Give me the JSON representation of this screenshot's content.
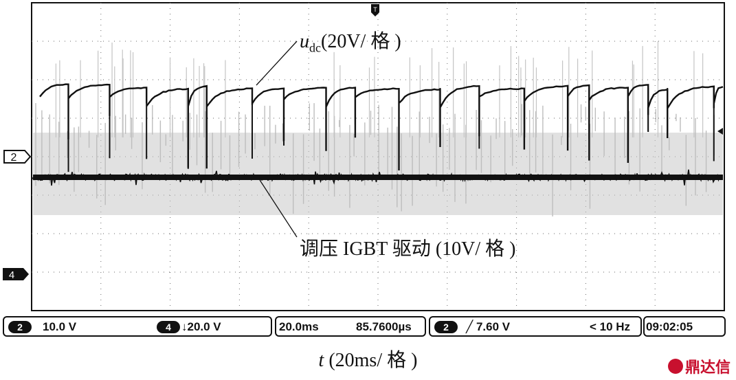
{
  "chart_data": {
    "type": "line",
    "title": "",
    "xlabel_var": "t",
    "xlabel_rest": "(20ms/ 格 )",
    "ylabel": "",
    "grid": true,
    "x_divisions": 10,
    "y_divisions": 8,
    "x_units": "ms",
    "x_range": [
      0,
      200
    ],
    "series": [
      {
        "name_var": "u",
        "name_sub": "dc",
        "name_rest": "(20V/ 格 )",
        "trace": "udc",
        "color": "#111111",
        "baseline_div": 2.9,
        "notes": "DC-link voltage with periodic sharp dips"
      },
      {
        "name": "调压 IGBT 驱动 (10V/ 格 )",
        "trace": "igbt",
        "color": "#111111",
        "baseline_div": 4.2,
        "notes": "IGBT gate drive, dense switching"
      },
      {
        "name": "",
        "trace": "band",
        "color": "#c8c8c8"
      }
    ],
    "channel_markers": [
      "2",
      "4"
    ]
  },
  "status": {
    "ch2_badge": "2",
    "ch2_scale": "10.0 V",
    "ch4_badge": "4",
    "ch4_scale": "↓20.0 V",
    "timebase": "20.0ms",
    "delay": "85.7600µs",
    "trig_badge": "2",
    "trig_level": "╱ 7.60 V",
    "trig_freq": "< 10 Hz",
    "clock": "09:02:05"
  },
  "watermark": "鼎达信"
}
